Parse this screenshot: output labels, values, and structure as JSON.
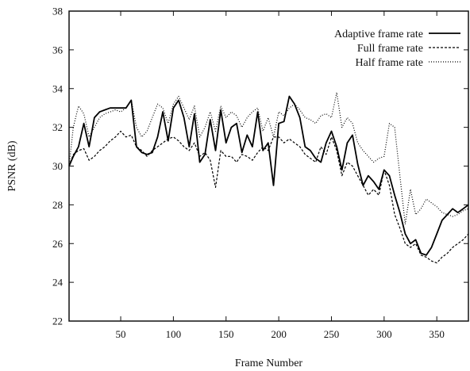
{
  "chart_data": {
    "type": "line",
    "xlabel": "Frame Number",
    "ylabel": "PSNR (dB)",
    "xlim": [
      1,
      380
    ],
    "ylim": [
      22,
      38
    ],
    "xticks": [
      50,
      100,
      150,
      200,
      250,
      300,
      350
    ],
    "yticks": [
      22,
      24,
      26,
      28,
      30,
      32,
      34,
      36,
      38
    ],
    "grid": false,
    "legend_position": "top-right",
    "series": [
      {
        "name": "Adaptive frame rate",
        "color": "#000000",
        "style": "solid",
        "x": [
          1,
          5,
          10,
          15,
          20,
          25,
          30,
          35,
          40,
          45,
          50,
          55,
          60,
          65,
          70,
          75,
          80,
          85,
          90,
          95,
          100,
          105,
          110,
          115,
          120,
          125,
          130,
          135,
          140,
          145,
          150,
          155,
          160,
          165,
          170,
          175,
          180,
          185,
          190,
          195,
          200,
          205,
          210,
          215,
          220,
          225,
          230,
          235,
          240,
          245,
          250,
          255,
          260,
          265,
          270,
          275,
          280,
          285,
          290,
          295,
          300,
          305,
          310,
          315,
          320,
          325,
          330,
          335,
          340,
          345,
          350,
          355,
          360,
          365,
          370,
          375,
          380
        ],
        "y": [
          30.0,
          30.5,
          31.0,
          32.2,
          31.0,
          32.5,
          32.8,
          32.9,
          33.0,
          33.0,
          33.0,
          33.0,
          33.4,
          31.0,
          30.7,
          30.6,
          30.7,
          31.5,
          32.8,
          31.3,
          33.0,
          33.4,
          32.5,
          31.0,
          32.7,
          30.2,
          30.6,
          32.4,
          30.8,
          32.9,
          31.2,
          32.0,
          32.2,
          30.7,
          31.6,
          31.0,
          32.8,
          30.8,
          31.2,
          29.0,
          32.2,
          32.3,
          33.6,
          33.2,
          32.5,
          31.0,
          30.8,
          30.4,
          30.2,
          31.2,
          31.8,
          31.0,
          29.8,
          31.2,
          31.6,
          30.1,
          29.0,
          29.5,
          29.2,
          28.8,
          29.8,
          29.5,
          28.5,
          27.6,
          26.5,
          26.0,
          26.2,
          25.5,
          25.4,
          25.8,
          26.5,
          27.2,
          27.5,
          27.8,
          27.6,
          27.8,
          28.0
        ]
      },
      {
        "name": "Full frame rate",
        "color": "#000000",
        "style": "dashed",
        "x": [
          1,
          5,
          10,
          15,
          20,
          25,
          30,
          35,
          40,
          45,
          50,
          55,
          60,
          65,
          70,
          75,
          80,
          85,
          90,
          95,
          100,
          105,
          110,
          115,
          120,
          125,
          130,
          135,
          140,
          145,
          150,
          155,
          160,
          165,
          170,
          175,
          180,
          185,
          190,
          195,
          200,
          205,
          210,
          215,
          220,
          225,
          230,
          235,
          240,
          245,
          250,
          255,
          260,
          265,
          270,
          275,
          280,
          285,
          290,
          295,
          300,
          305,
          310,
          315,
          320,
          325,
          330,
          335,
          340,
          345,
          350,
          355,
          360,
          365,
          370,
          375,
          380
        ],
        "y": [
          30.0,
          30.6,
          30.8,
          30.9,
          30.3,
          30.5,
          30.8,
          31.0,
          31.3,
          31.5,
          31.8,
          31.5,
          31.6,
          31.0,
          30.8,
          30.5,
          30.8,
          31.0,
          31.2,
          31.4,
          31.5,
          31.3,
          31.0,
          30.8,
          31.2,
          30.5,
          30.7,
          30.3,
          28.9,
          30.8,
          30.5,
          30.5,
          30.2,
          30.6,
          30.5,
          30.3,
          30.7,
          31.0,
          30.8,
          31.5,
          31.5,
          31.2,
          31.4,
          31.2,
          31.0,
          30.6,
          30.4,
          30.2,
          31.0,
          30.6,
          31.5,
          30.8,
          29.5,
          30.2,
          30.0,
          29.5,
          29.0,
          28.5,
          28.8,
          28.5,
          29.8,
          29.0,
          27.5,
          26.8,
          26.0,
          25.8,
          26.0,
          25.4,
          25.3,
          25.1,
          25.0,
          25.3,
          25.5,
          25.8,
          26.0,
          26.2,
          26.5
        ]
      },
      {
        "name": "Half frame rate",
        "color": "#000000",
        "style": "dotted",
        "x": [
          1,
          5,
          10,
          15,
          20,
          25,
          30,
          35,
          40,
          45,
          50,
          55,
          60,
          65,
          70,
          75,
          80,
          85,
          90,
          95,
          100,
          105,
          110,
          115,
          120,
          125,
          130,
          135,
          140,
          145,
          150,
          155,
          160,
          165,
          170,
          175,
          180,
          185,
          190,
          195,
          200,
          205,
          210,
          215,
          220,
          225,
          230,
          235,
          240,
          245,
          250,
          255,
          260,
          265,
          270,
          275,
          280,
          285,
          290,
          295,
          300,
          305,
          310,
          315,
          320,
          325,
          330,
          335,
          340,
          345,
          350,
          355,
          360,
          365,
          370,
          375,
          380
        ],
        "y": [
          30.0,
          32.0,
          33.1,
          32.7,
          31.5,
          32.0,
          32.5,
          32.7,
          32.8,
          32.9,
          32.8,
          33.0,
          33.4,
          32.0,
          31.5,
          31.8,
          32.5,
          33.2,
          33.0,
          32.2,
          33.2,
          33.6,
          33.0,
          32.4,
          33.1,
          31.5,
          32.0,
          32.8,
          31.8,
          33.1,
          32.5,
          32.8,
          32.6,
          32.0,
          32.5,
          32.8,
          33.0,
          31.8,
          32.5,
          31.5,
          32.8,
          32.6,
          33.0,
          33.2,
          32.9,
          32.5,
          32.4,
          32.2,
          32.6,
          32.7,
          32.5,
          33.8,
          32.0,
          32.5,
          32.2,
          31.2,
          30.8,
          30.5,
          30.2,
          30.4,
          30.5,
          32.2,
          32.0,
          29.5,
          27.0,
          28.8,
          27.5,
          27.8,
          28.3,
          28.1,
          27.9,
          27.6,
          27.5,
          27.4,
          27.5,
          27.7,
          27.8
        ]
      }
    ]
  }
}
